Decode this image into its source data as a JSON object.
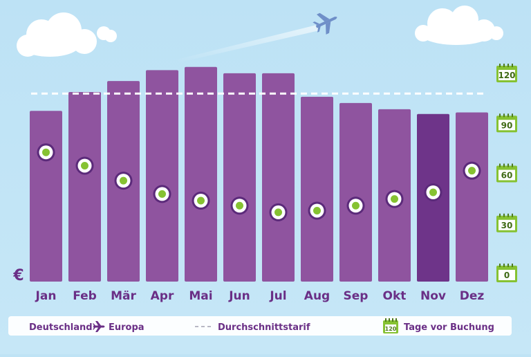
{
  "chart_data": {
    "type": "bar",
    "categories": [
      "Jan",
      "Feb",
      "Mär",
      "Apr",
      "Mai",
      "Jun",
      "Jul",
      "Aug",
      "Sep",
      "Okt",
      "Nov",
      "Dez"
    ],
    "series": [
      {
        "name": "Deutschland ✈ Europa",
        "values": [
          169,
          181,
          188,
          195,
          197,
          193,
          193,
          178,
          174,
          170,
          167,
          168
        ]
      },
      {
        "name": "Tage vor Buchung",
        "values": [
          73,
          65,
          56,
          48,
          44,
          41,
          37,
          38,
          41,
          45,
          49,
          62
        ]
      }
    ],
    "average": 180,
    "highlight_category": "Nov",
    "secondary_axis": {
      "ticks": [
        0,
        30,
        60,
        90,
        120
      ],
      "range": [
        0,
        120
      ]
    },
    "currency_label": "€",
    "grid": false,
    "legend_position": "bottom"
  },
  "legend": {
    "route_from": "Deutschland",
    "route_to": "Europa",
    "average_label": "Durchschnittstarif",
    "days_label": "Tage vor Buchung",
    "days_badge": "120"
  },
  "colors": {
    "sky": "#bfe3f5",
    "bar": "#8f549f",
    "bar_highlight": "#6e3489",
    "dot_fill": "#86c232",
    "dot_ring": "#5b2a7a",
    "badge_green": "#86c232",
    "text_purple": "#6a2f86"
  },
  "icons": [
    "cloud-icon",
    "airplane-icon",
    "calendar-icon"
  ]
}
